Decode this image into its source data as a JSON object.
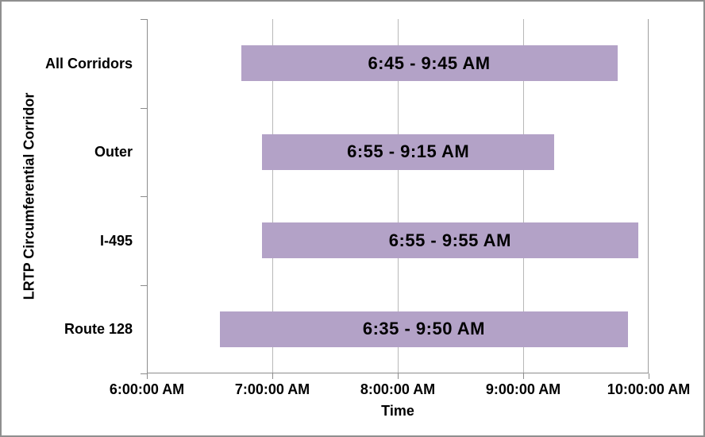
{
  "window": {
    "background": "#ffffff",
    "outer_border_color": "#8f8f8f"
  },
  "chart_data": {
    "type": "bar",
    "orientation": "horizontal",
    "title": "",
    "xlabel": "Time",
    "ylabel": "LRTP Circumferential Corridor",
    "xlim": [
      6,
      10
    ],
    "x_tick_hours": [
      6,
      7,
      8,
      9,
      10
    ],
    "x_tick_labels": [
      "6:00:00 AM",
      "7:00:00 AM",
      "8:00:00 AM",
      "9:00:00 AM",
      "10:00:00 AM"
    ],
    "grid": true,
    "legend": "none",
    "categories": [
      "All Corridors",
      "Outer",
      "I-495",
      "Route 128"
    ],
    "bars": [
      {
        "category": "All Corridors",
        "start_hour": 6.75,
        "end_hour": 9.75,
        "label": "6:45 - 9:45 AM"
      },
      {
        "category": "Outer",
        "start_hour": 6.9167,
        "end_hour": 9.25,
        "label": "6:55 - 9:15 AM"
      },
      {
        "category": "I-495",
        "start_hour": 6.9167,
        "end_hour": 9.9167,
        "label": "6:55 - 9:55 AM"
      },
      {
        "category": "Route 128",
        "start_hour": 6.5833,
        "end_hour": 9.8333,
        "label": "6:35 - 9:50 AM"
      }
    ],
    "colors": {
      "bar_fill": "#b3a2c7",
      "bar_label_text": "#000000",
      "gridline": "#b8b8b8",
      "axis_line": "#8c8c8c",
      "plot_right_border": "#9e9e9e",
      "text": "#000000"
    }
  }
}
